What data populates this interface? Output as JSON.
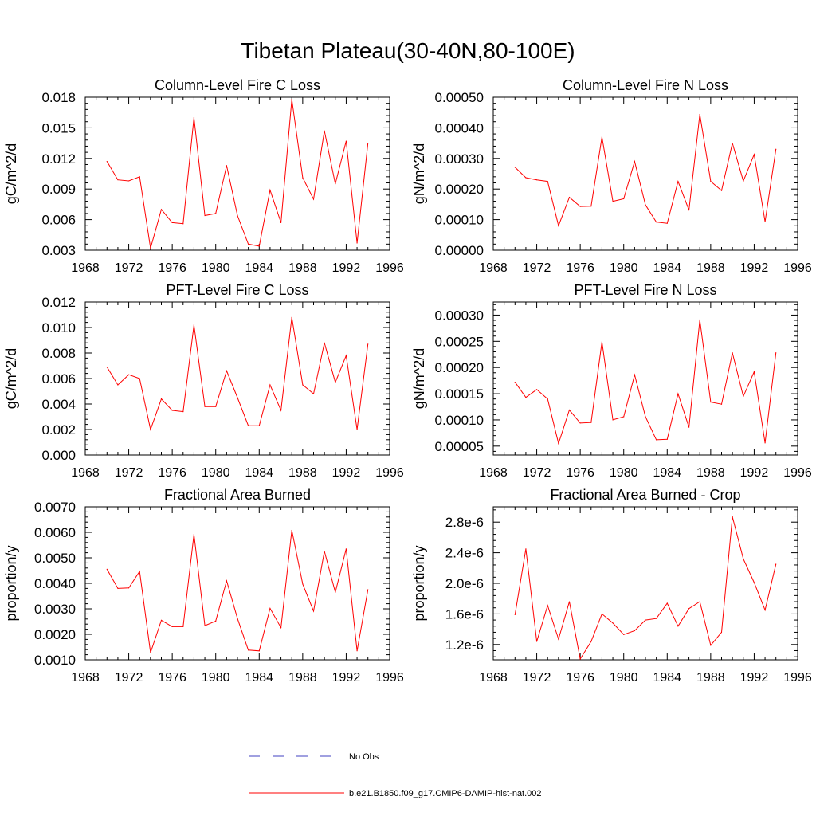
{
  "title": "Tibetan Plateau(30-40N,80-100E)",
  "legend": {
    "obs_label": "No Obs",
    "model_label": "b.e21.B1850.f09_g17.CMIP6-DAMIP-hist-nat.002",
    "obs_color": "#4040c0",
    "model_color": "#ff0000"
  },
  "chart_data": [
    {
      "type": "line",
      "title": "Column-Level Fire C Loss",
      "ylabel": "gC/m^2/d",
      "xlim": [
        1968,
        1996
      ],
      "xticks": [
        1968,
        1972,
        1976,
        1980,
        1984,
        1988,
        1992,
        1996
      ],
      "ylim": [
        0.003,
        0.018
      ],
      "yticks": [
        0.003,
        0.006,
        0.009,
        0.012,
        0.015,
        0.018
      ],
      "ytick_labels": [
        "0.003",
        "0.006",
        "0.009",
        "0.012",
        "0.015",
        "0.018"
      ],
      "series": [
        {
          "x": [
            1970,
            1971,
            1972,
            1973,
            1974,
            1975,
            1976,
            1977,
            1978,
            1979,
            1980,
            1981,
            1982,
            1983,
            1984,
            1985,
            1986,
            1987,
            1988,
            1989,
            1990,
            1991,
            1992,
            1993,
            1994
          ],
          "values": [
            0.0117,
            0.0099,
            0.0098,
            0.0102,
            0.0032,
            0.007,
            0.0057,
            0.0056,
            0.016,
            0.0064,
            0.0066,
            0.0113,
            0.0064,
            0.0036,
            0.0034,
            0.0089,
            0.0057,
            0.0178,
            0.0101,
            0.008,
            0.0147,
            0.0095,
            0.0137,
            0.0037,
            0.0135
          ]
        }
      ]
    },
    {
      "type": "line",
      "title": "Column-Level Fire N Loss",
      "ylabel": "gN/m^2/d",
      "xlim": [
        1968,
        1996
      ],
      "xticks": [
        1968,
        1972,
        1976,
        1980,
        1984,
        1988,
        1992,
        1996
      ],
      "ylim": [
        0.0,
        0.0005
      ],
      "yticks": [
        0.0,
        0.0001,
        0.0002,
        0.0003,
        0.0004,
        0.0005
      ],
      "ytick_labels": [
        "0.00000",
        "0.00010",
        "0.00020",
        "0.00030",
        "0.00040",
        "0.00050"
      ],
      "series": [
        {
          "x": [
            1970,
            1971,
            1972,
            1973,
            1974,
            1975,
            1976,
            1977,
            1978,
            1979,
            1980,
            1981,
            1982,
            1983,
            1984,
            1985,
            1986,
            1987,
            1988,
            1989,
            1990,
            1991,
            1992,
            1993,
            1994
          ],
          "values": [
            0.000271,
            0.000237,
            0.00023,
            0.000225,
            8e-05,
            0.000173,
            0.000143,
            0.000144,
            0.00037,
            0.00016,
            0.000168,
            0.00029,
            0.000148,
            9.2e-05,
            8.8e-05,
            0.000225,
            0.000131,
            0.000444,
            0.000225,
            0.000195,
            0.00035,
            0.000226,
            0.000313,
            9.3e-05,
            0.00033
          ]
        }
      ]
    },
    {
      "type": "line",
      "title": "PFT-Level Fire C Loss",
      "ylabel": "gC/m^2/d",
      "xlim": [
        1968,
        1996
      ],
      "xticks": [
        1968,
        1972,
        1976,
        1980,
        1984,
        1988,
        1992,
        1996
      ],
      "ylim": [
        0.0,
        0.012
      ],
      "yticks": [
        0.0,
        0.002,
        0.004,
        0.006,
        0.008,
        0.01,
        0.012
      ],
      "ytick_labels": [
        "0.000",
        "0.002",
        "0.004",
        "0.006",
        "0.008",
        "0.010",
        "0.012"
      ],
      "series": [
        {
          "x": [
            1970,
            1971,
            1972,
            1973,
            1974,
            1975,
            1976,
            1977,
            1978,
            1979,
            1980,
            1981,
            1982,
            1983,
            1984,
            1985,
            1986,
            1987,
            1988,
            1989,
            1990,
            1991,
            1992,
            1993,
            1994
          ],
          "values": [
            0.0069,
            0.0055,
            0.0063,
            0.006,
            0.002,
            0.0044,
            0.0035,
            0.0034,
            0.0102,
            0.0038,
            0.0038,
            0.0066,
            0.0045,
            0.0023,
            0.0023,
            0.0055,
            0.0035,
            0.0108,
            0.0055,
            0.0048,
            0.0088,
            0.0057,
            0.0078,
            0.002,
            0.0087
          ]
        }
      ]
    },
    {
      "type": "line",
      "title": "PFT-Level Fire N Loss",
      "ylabel": "gN/m^2/d",
      "xlim": [
        1968,
        1996
      ],
      "xticks": [
        1968,
        1972,
        1976,
        1980,
        1984,
        1988,
        1992,
        1996
      ],
      "ylim": [
        3.3e-05,
        0.000325
      ],
      "yticks": [
        5e-05,
        0.0001,
        0.00015,
        0.0002,
        0.00025,
        0.0003
      ],
      "ytick_labels": [
        "0.00005",
        "0.00010",
        "0.00015",
        "0.00020",
        "0.00025",
        "0.00030"
      ],
      "series": [
        {
          "x": [
            1970,
            1971,
            1972,
            1973,
            1974,
            1975,
            1976,
            1977,
            1978,
            1979,
            1980,
            1981,
            1982,
            1983,
            1984,
            1985,
            1986,
            1987,
            1988,
            1989,
            1990,
            1991,
            1992,
            1993,
            1994
          ],
          "values": [
            0.000172,
            0.000143,
            0.000158,
            0.00014,
            5.5e-05,
            0.000119,
            9.4e-05,
            9.5e-05,
            0.000249,
            0.0001,
            0.000106,
            0.000186,
            0.000106,
            6.2e-05,
            6.3e-05,
            0.00015,
            8.6e-05,
            0.000291,
            0.000134,
            0.00013,
            0.000228,
            0.000145,
            0.000192,
            5.6e-05,
            0.000228
          ]
        }
      ]
    },
    {
      "type": "line",
      "title": "Fractional Area Burned",
      "ylabel": "proportion/y",
      "xlim": [
        1968,
        1996
      ],
      "xticks": [
        1968,
        1972,
        1976,
        1980,
        1984,
        1988,
        1992,
        1996
      ],
      "ylim": [
        0.001,
        0.007
      ],
      "yticks": [
        0.001,
        0.002,
        0.003,
        0.004,
        0.005,
        0.006,
        0.007
      ],
      "ytick_labels": [
        "0.0010",
        "0.0020",
        "0.0030",
        "0.0040",
        "0.0050",
        "0.0060",
        "0.0070"
      ],
      "series": [
        {
          "x": [
            1970,
            1971,
            1972,
            1973,
            1974,
            1975,
            1976,
            1977,
            1978,
            1979,
            1980,
            1981,
            1982,
            1983,
            1984,
            1985,
            1986,
            1987,
            1988,
            1989,
            1990,
            1991,
            1992,
            1993,
            1994
          ],
          "values": [
            0.00455,
            0.0038,
            0.00382,
            0.00447,
            0.00128,
            0.00255,
            0.0023,
            0.0023,
            0.00592,
            0.00234,
            0.00252,
            0.0041,
            0.00262,
            0.00138,
            0.00135,
            0.00302,
            0.00226,
            0.00608,
            0.00397,
            0.00291,
            0.00526,
            0.00365,
            0.00535,
            0.00135,
            0.00375
          ]
        }
      ]
    },
    {
      "type": "line",
      "title": "Fractional Area Burned - Crop",
      "ylabel": "proportion/y",
      "xlim": [
        1968,
        1996
      ],
      "xticks": [
        1968,
        1972,
        1976,
        1980,
        1984,
        1988,
        1992,
        1996
      ],
      "ylim": [
        1e-06,
        3e-06
      ],
      "yticks": [
        1.2e-06,
        1.6e-06,
        2e-06,
        2.4e-06,
        2.8e-06
      ],
      "ytick_labels": [
        "1.2e-6",
        "1.6e-6",
        "2.0e-6",
        "2.4e-6",
        "2.8e-6"
      ],
      "series": [
        {
          "x": [
            1970,
            1971,
            1972,
            1973,
            1974,
            1975,
            1976,
            1977,
            1978,
            1979,
            1980,
            1981,
            1982,
            1983,
            1984,
            1985,
            1986,
            1987,
            1988,
            1989,
            1990,
            1991,
            1992,
            1993,
            1994
          ],
          "values": [
            1.59e-06,
            2.45e-06,
            1.24e-06,
            1.71e-06,
            1.27e-06,
            1.76e-06,
            1.01e-06,
            1.24e-06,
            1.6e-06,
            1.48e-06,
            1.33e-06,
            1.38e-06,
            1.52e-06,
            1.54e-06,
            1.74e-06,
            1.44e-06,
            1.67e-06,
            1.76e-06,
            1.19e-06,
            1.36e-06,
            2.87e-06,
            2.32e-06,
            2.01e-06,
            1.65e-06,
            2.25e-06
          ]
        }
      ]
    }
  ]
}
